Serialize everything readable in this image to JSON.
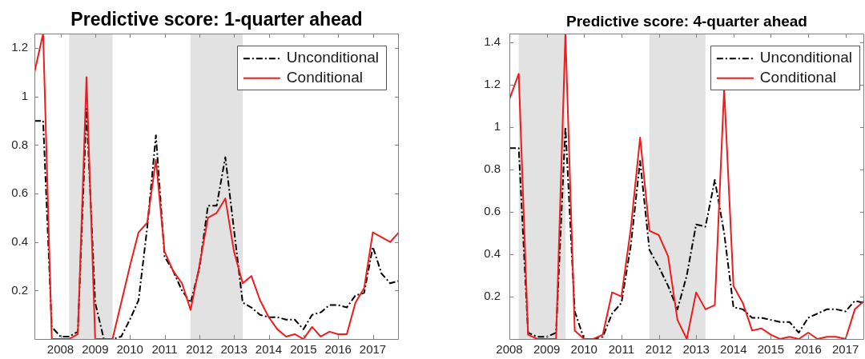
{
  "chart_data": [
    {
      "type": "line",
      "title": "Predictive score: 1-quarter ahead",
      "x": [
        2007.25,
        2007.5,
        2007.75,
        2008,
        2008.25,
        2008.5,
        2008.75,
        2009,
        2009.25,
        2009.5,
        2009.75,
        2010,
        2010.25,
        2010.5,
        2010.75,
        2011,
        2011.25,
        2011.5,
        2011.75,
        2012,
        2012.25,
        2012.5,
        2012.75,
        2013,
        2013.25,
        2013.5,
        2013.75,
        2014,
        2014.25,
        2014.5,
        2014.75,
        2015,
        2015.25,
        2015.5,
        2015.75,
        2016,
        2016.25,
        2016.5,
        2016.75,
        2017,
        2017.25,
        2017.5,
        2017.75
      ],
      "series": [
        {
          "name": "Unconditional",
          "color": "#000000",
          "line_style": "dashed",
          "values": [
            0.9,
            0.9,
            0.05,
            0.01,
            0.01,
            0.03,
            0.95,
            0.15,
            0,
            0,
            0.01,
            0.08,
            0.16,
            0.46,
            0.84,
            0.34,
            0.28,
            0.2,
            0.15,
            0.29,
            0.55,
            0.55,
            0.75,
            0.45,
            0.15,
            0.13,
            0.1,
            0.09,
            0.09,
            0.08,
            0.08,
            0.04,
            0.1,
            0.11,
            0.14,
            0.14,
            0.13,
            0.18,
            0.19,
            0.38,
            0.27,
            0.23,
            0.24
          ]
        },
        {
          "name": "Conditional",
          "color": "#ee1c1c",
          "line_style": "solid",
          "values": [
            1.1,
            1.26,
            0,
            0,
            0,
            0.02,
            1.08,
            0,
            0,
            0,
            0.15,
            0.3,
            0.44,
            0.48,
            0.74,
            0.36,
            0.28,
            0.23,
            0.12,
            0.3,
            0.5,
            0.52,
            0.58,
            0.36,
            0.23,
            0.26,
            0.16,
            0.09,
            0.04,
            0.01,
            0.02,
            0,
            0.05,
            0.01,
            0.03,
            0.02,
            0.02,
            0.15,
            0.21,
            0.44,
            0.42,
            0.4,
            0.44
          ]
        }
      ],
      "xlim": [
        2007.25,
        2017.75
      ],
      "xticks": [
        2008,
        2009,
        2010,
        2011,
        2012,
        2013,
        2014,
        2015,
        2016,
        2017
      ],
      "ylim": [
        0,
        1.26
      ],
      "yticks": [
        0.2,
        0.4,
        0.6,
        0.8,
        1,
        1.2
      ],
      "bands": [
        {
          "axis": "x",
          "from": 2008.25,
          "to": 2009.5,
          "color": "#e2e2e2"
        },
        {
          "axis": "x",
          "from": 2011.75,
          "to": 2013.25,
          "color": "#e2e2e2"
        }
      ],
      "grid": false,
      "legend": "top right"
    },
    {
      "type": "line",
      "title": "Predictive score: 4-quarter ahead",
      "x": [
        2008,
        2008.25,
        2008.5,
        2008.75,
        2009,
        2009.25,
        2009.5,
        2009.75,
        2010,
        2010.25,
        2010.5,
        2010.75,
        2011,
        2011.25,
        2011.5,
        2011.75,
        2012,
        2012.25,
        2012.5,
        2012.75,
        2013,
        2013.25,
        2013.5,
        2013.75,
        2014,
        2014.25,
        2014.5,
        2014.75,
        2015,
        2015.25,
        2015.5,
        2015.75,
        2016,
        2016.25,
        2016.5,
        2016.75,
        2017,
        2017.25,
        2017.5
      ],
      "series": [
        {
          "name": "Unconditional",
          "color": "#000000",
          "line_style": "dashed",
          "values": [
            0.9,
            0.9,
            0.03,
            0.01,
            0.01,
            0.03,
            1,
            0.13,
            0,
            0,
            0.01,
            0.12,
            0.17,
            0.44,
            0.84,
            0.42,
            0.34,
            0.25,
            0.14,
            0.3,
            0.54,
            0.53,
            0.75,
            0.5,
            0.15,
            0.14,
            0.1,
            0.1,
            0.09,
            0.08,
            0.08,
            0.03,
            0.1,
            0.12,
            0.14,
            0.14,
            0.13,
            0.18,
            0.17
          ]
        },
        {
          "name": "Conditional",
          "color": "#ee1c1c",
          "line_style": "solid",
          "values": [
            1.13,
            1.25,
            0.02,
            0,
            0,
            0,
            1.44,
            0.04,
            0,
            0,
            0.02,
            0.22,
            0.2,
            0.52,
            0.95,
            0.51,
            0.49,
            0.39,
            0.09,
            0,
            0.22,
            0.14,
            0.16,
            1.18,
            0.25,
            0.17,
            0.04,
            0.05,
            0.02,
            0,
            0.01,
            0,
            0.03,
            0,
            0.01,
            0.01,
            0,
            0.14,
            0.18
          ]
        }
      ],
      "xlim": [
        2008,
        2017.5
      ],
      "xticks": [
        2008,
        2009,
        2010,
        2011,
        2012,
        2013,
        2014,
        2015,
        2016,
        2017
      ],
      "ylim": [
        0,
        1.44
      ],
      "yticks": [
        0.2,
        0.4,
        0.6,
        0.8,
        1,
        1.2,
        1.4
      ],
      "bands": [
        {
          "axis": "x",
          "from": 2008.25,
          "to": 2009.5,
          "color": "#e2e2e2"
        },
        {
          "axis": "x",
          "from": 2011.75,
          "to": 2013.25,
          "color": "#e2e2e2"
        }
      ],
      "grid": false,
      "legend": "top right"
    }
  ]
}
